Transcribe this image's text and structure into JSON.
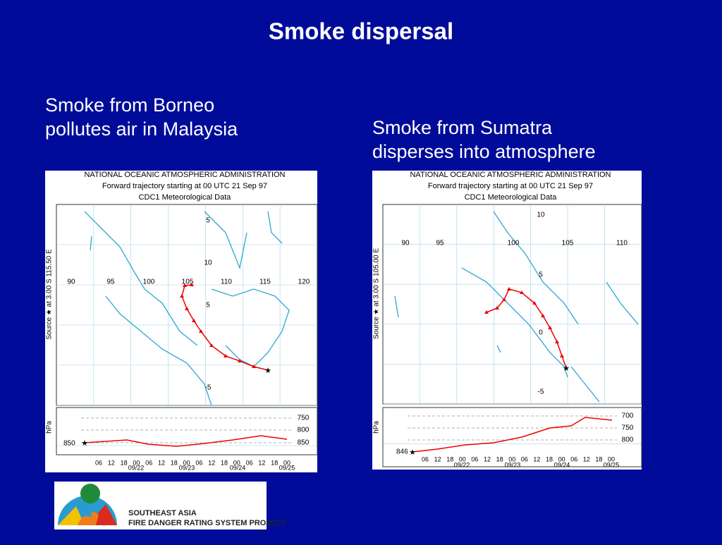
{
  "title": "Smoke dispersal",
  "panels": [
    {
      "caption": [
        "Smoke from Borneo",
        "pollutes air in Malaysia"
      ],
      "header": [
        "NATIONAL OCEANIC ATMOSPHERIC ADMINISTRATION",
        "Forward trajectory starting at 00 UTC 21 Sep 97",
        "CDC1 Meteorological Data"
      ],
      "side_label": "Source ★ at   3.00 S  115.50 E",
      "lon_labels": [
        "90",
        "95",
        "100",
        "105",
        "110",
        "115",
        "120"
      ],
      "lat_labels": [
        "5",
        "10",
        "5",
        "-5"
      ],
      "pressure_axis_label": "hPa",
      "pressure_labels": [
        "750",
        "800",
        "850"
      ],
      "start_pressure": "850",
      "times": [
        "06",
        "12",
        "18",
        "00",
        "06",
        "12",
        "18",
        "00",
        "06",
        "12",
        "18",
        "00",
        "06",
        "12",
        "18",
        "00"
      ],
      "dates": [
        "09/22",
        "09/23",
        "09/24",
        "09/25"
      ]
    },
    {
      "caption": [
        "Smoke from Sumatra",
        "disperses into atmosphere"
      ],
      "header": [
        "NATIONAL OCEANIC ATMOSPHERIC ADMINISTRATION",
        "Forward trajectory starting at 00 UTC 21 Sep 97",
        "CDC1 Meteorological Data"
      ],
      "side_label": "Source ★ at   3.00 S  105.00 E",
      "lon_labels": [
        "90",
        "95",
        "100",
        "105",
        "110"
      ],
      "lat_labels": [
        "10",
        "5",
        "0",
        "-5"
      ],
      "pressure_axis_label": "hPa",
      "pressure_labels": [
        "700",
        "750",
        "800"
      ],
      "start_pressure": "846",
      "times": [
        "06",
        "12",
        "18",
        "00",
        "06",
        "12",
        "18",
        "00",
        "06",
        "12",
        "18",
        "00",
        "06",
        "12",
        "18",
        "00"
      ],
      "dates": [
        "09/22",
        "09/23",
        "09/24",
        "09/25"
      ]
    }
  ],
  "logo": [
    "Southeast Asia",
    "Fire Danger Rating System Project"
  ]
}
